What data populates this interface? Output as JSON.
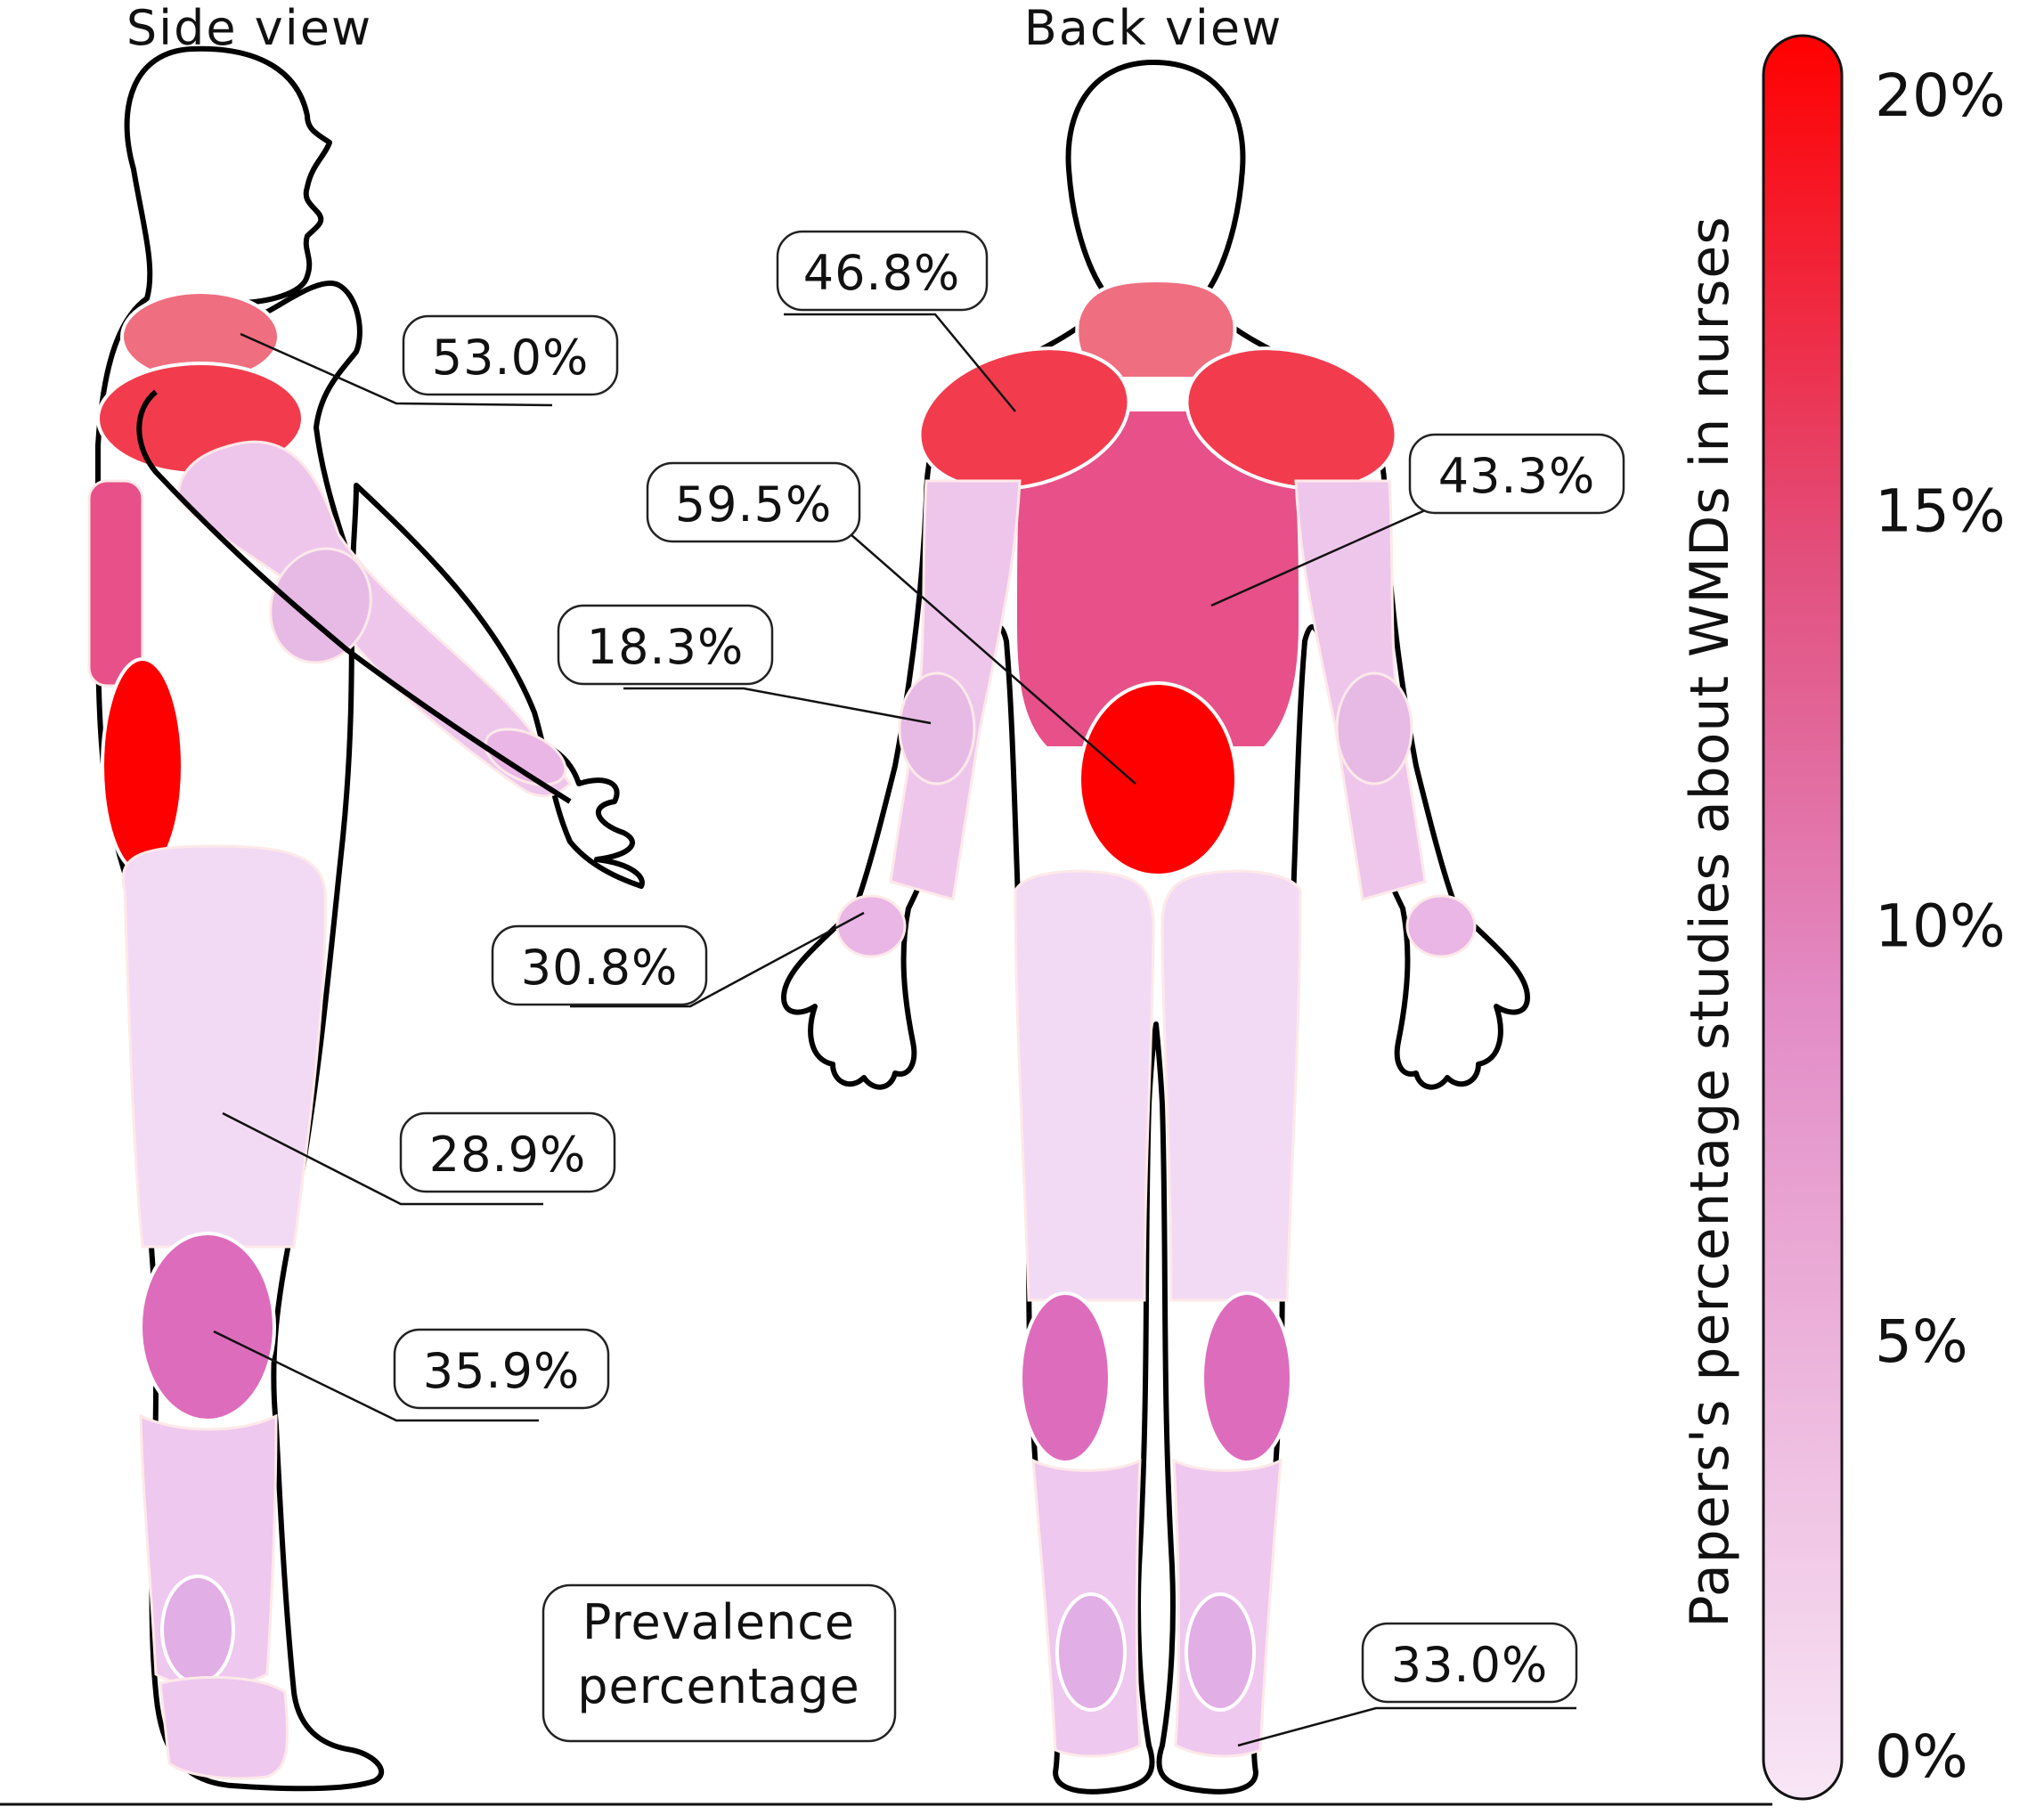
{
  "views": {
    "side": "Side view",
    "back": "Back view"
  },
  "legend_box": {
    "line1": "Prevalence",
    "line2": "percentage"
  },
  "callouts": {
    "neck": "53.0%",
    "shoulders": "46.8%",
    "lower_back": "59.5%",
    "upper_back": "43.3%",
    "elbows": "18.3%",
    "wrists_hands": "30.8%",
    "hips_thighs": "28.9%",
    "knees": "35.9%",
    "ankles_feet": "33.0%"
  },
  "color_scale": {
    "title": "Papers's percentage studies about WMDs in nurses",
    "ticks": [
      "20%",
      "15%",
      "10%",
      "5%",
      "0%"
    ],
    "tick_values": [
      20,
      15,
      10,
      5,
      0
    ],
    "min": 0,
    "max": 20,
    "color_low": "#f8e6f6",
    "color_mid": "#e460a8",
    "color_high": "#ff0000"
  },
  "region_colors": {
    "neck": "#ef6e80",
    "shoulders": "#f23c4e",
    "upper_back": "#e75088",
    "lower_back": "#ff0000",
    "arms": "#eec6ec",
    "elbows": "#e6bae4",
    "wrists": "#eab6e6",
    "thighs": "#f2daf4",
    "knees": "#de6cbc",
    "lower_legs": "#eec8ee",
    "ankles": "#e2aee6"
  }
}
